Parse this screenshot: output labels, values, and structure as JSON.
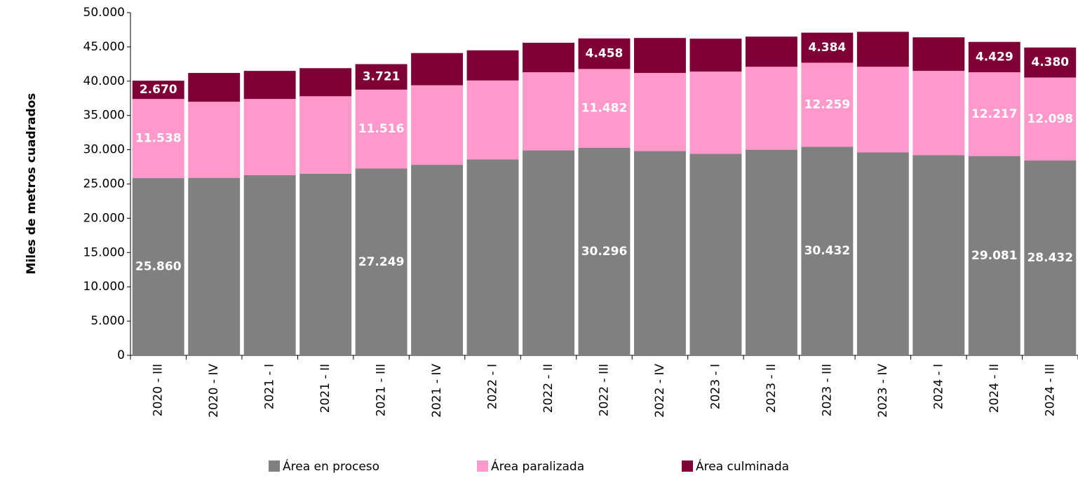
{
  "chart_data": {
    "type": "stacked_bar",
    "y_label": "Miles de metros cuadrados",
    "categories": [
      "2020 - III",
      "2020 - IV",
      "2021 - I",
      "2021 - II",
      "2021 - III",
      "2021 - IV",
      "2022 - I",
      "2022 - II",
      "2022 - III",
      "2022 - IV",
      "2023 - I",
      "2023 - II",
      "2023 - III",
      "2023 - IV",
      "2024 - I",
      "2024 - II",
      "2024 - III"
    ],
    "series": [
      {
        "name": "Área en proceso",
        "color": "#808080",
        "values": [
          25860,
          25900,
          26300,
          26500,
          27249,
          27800,
          28600,
          29900,
          30296,
          29800,
          29400,
          30000,
          30432,
          29600,
          29200,
          29081,
          28432
        ],
        "value_labels": [
          "25.860",
          null,
          null,
          null,
          "27.249",
          null,
          null,
          null,
          "30.296",
          null,
          null,
          null,
          "30.432",
          null,
          null,
          "29.081",
          "28.432"
        ]
      },
      {
        "name": "Área paralizada",
        "color": "#ff99cc",
        "values": [
          11538,
          11100,
          11100,
          11300,
          11516,
          11600,
          11500,
          11400,
          11482,
          11400,
          12000,
          12100,
          12259,
          12500,
          12300,
          12217,
          12098
        ],
        "value_labels": [
          "11.538",
          null,
          null,
          null,
          "11.516",
          null,
          null,
          null,
          "11.482",
          null,
          null,
          null,
          "12.259",
          null,
          null,
          "12.217",
          "12.098"
        ]
      },
      {
        "name": "Área culminada",
        "color": "#7f0037",
        "values": [
          2670,
          4200,
          4100,
          4100,
          3721,
          4700,
          4400,
          4300,
          4458,
          5100,
          4800,
          4400,
          4384,
          5100,
          4900,
          4429,
          4380
        ],
        "value_labels": [
          "2.670",
          null,
          null,
          null,
          "3.721",
          null,
          null,
          null,
          "4.458",
          null,
          null,
          null,
          "4.384",
          null,
          null,
          "4.429",
          "4.380"
        ]
      }
    ],
    "ylim": [
      0,
      50000
    ],
    "yticks": [
      0,
      {
        "value": 5000,
        "label": "5.000"
      },
      {
        "value": 10000,
        "label": "10.000"
      },
      {
        "value": 15000,
        "label": "15.000"
      },
      {
        "value": 20000,
        "label": "20.000"
      },
      {
        "value": 25000,
        "label": "25.000"
      },
      {
        "value": 30000,
        "label": "30.000"
      },
      {
        "value": 35000,
        "label": "35.000"
      },
      {
        "value": 40000,
        "label": "40.000"
      },
      {
        "value": 45000,
        "label": "45.000"
      },
      {
        "value": 50000,
        "label": "50.000"
      }
    ],
    "legend": "bottom",
    "grid": false
  }
}
